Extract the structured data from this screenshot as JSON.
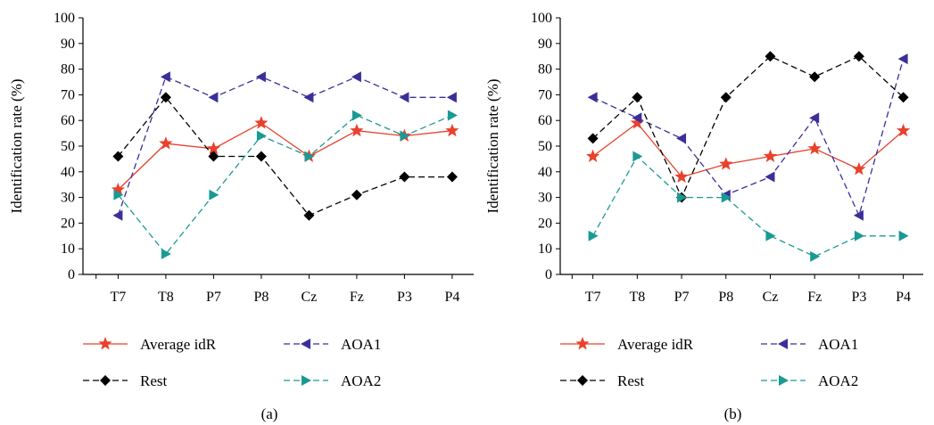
{
  "chart_data": [
    {
      "type": "line",
      "panel_label": "(a)",
      "xlabel": "",
      "ylabel": "Identification rate (%)",
      "ylim": [
        0,
        100
      ],
      "yticks": [
        "0",
        "10",
        "20",
        "30",
        "40",
        "50",
        "60",
        "70",
        "80",
        "90",
        "100"
      ],
      "categories": [
        "T7",
        "T8",
        "P7",
        "P8",
        "Cz",
        "Fz",
        "P3",
        "P4"
      ],
      "grid": false,
      "legend_position": "bottom",
      "series": [
        {
          "name": "Average idR",
          "color": "#e8412c",
          "dash": "solid",
          "marker": "star",
          "values": [
            33,
            51,
            49,
            59,
            46,
            56,
            54,
            56
          ]
        },
        {
          "name": "AOA1",
          "color": "#3a2f9a",
          "dash": "dashed",
          "marker": "triangle-left",
          "values": [
            23,
            77,
            69,
            77,
            69,
            77,
            69,
            69
          ]
        },
        {
          "name": "Rest",
          "color": "#000000",
          "dash": "dashed",
          "marker": "diamond",
          "values": [
            46,
            69,
            46,
            46,
            23,
            31,
            38,
            38
          ]
        },
        {
          "name": "AOA2",
          "color": "#1a9a94",
          "dash": "dashed",
          "marker": "triangle-right",
          "values": [
            31,
            8,
            31,
            54,
            46,
            62,
            54,
            62
          ]
        }
      ]
    },
    {
      "type": "line",
      "panel_label": "(b)",
      "xlabel": "",
      "ylabel": "Identification rate (%)",
      "ylim": [
        0,
        100
      ],
      "yticks": [
        "0",
        "10",
        "20",
        "30",
        "40",
        "50",
        "60",
        "70",
        "80",
        "90",
        "100"
      ],
      "categories": [
        "T7",
        "T8",
        "P7",
        "P8",
        "Cz",
        "Fz",
        "P3",
        "P4"
      ],
      "grid": false,
      "legend_position": "bottom",
      "series": [
        {
          "name": "Average idR",
          "color": "#e8412c",
          "dash": "solid",
          "marker": "star",
          "values": [
            46,
            59,
            38,
            43,
            46,
            49,
            41,
            56
          ]
        },
        {
          "name": "AOA1",
          "color": "#3a2f9a",
          "dash": "dashed",
          "marker": "triangle-left",
          "values": [
            69,
            61,
            53,
            31,
            38,
            61,
            23,
            84
          ]
        },
        {
          "name": "Rest",
          "color": "#000000",
          "dash": "dashed",
          "marker": "diamond",
          "values": [
            53,
            69,
            30,
            69,
            85,
            77,
            85,
            69
          ]
        },
        {
          "name": "AOA2",
          "color": "#1a9a94",
          "dash": "dashed",
          "marker": "triangle-right",
          "values": [
            15,
            46,
            30,
            30,
            15,
            7,
            15,
            15
          ]
        }
      ]
    }
  ]
}
